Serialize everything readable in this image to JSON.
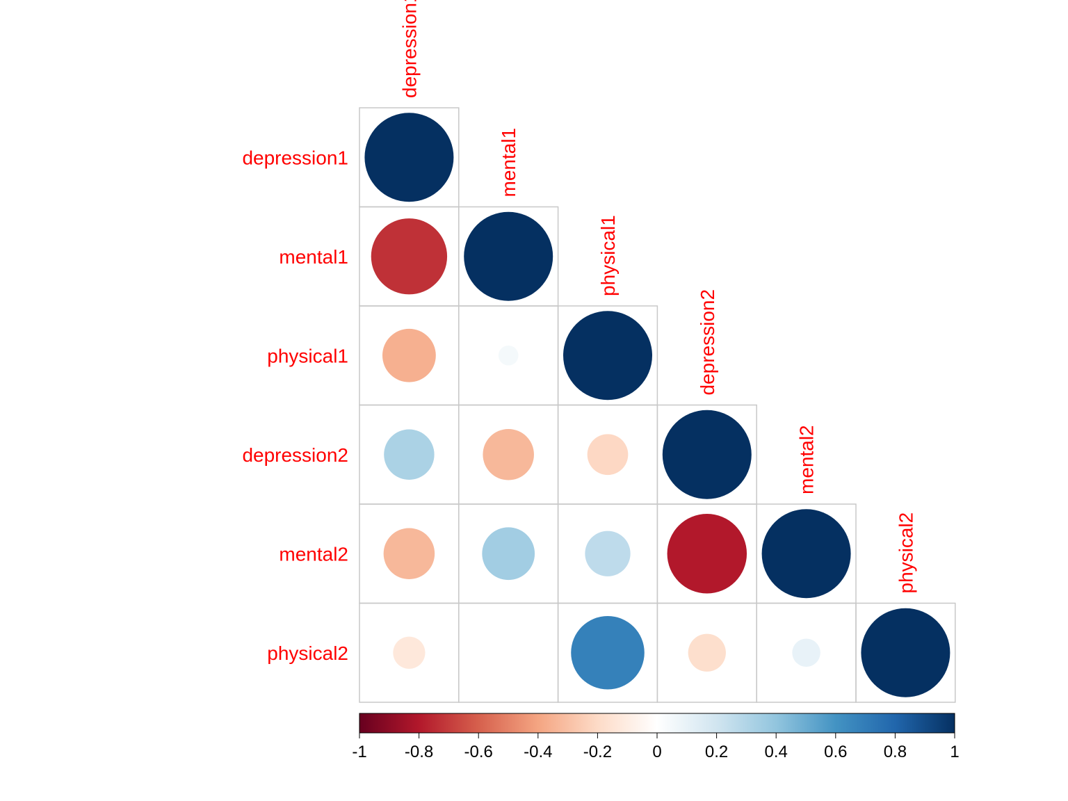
{
  "chart_data": {
    "type": "heatmap",
    "subtype": "correlation-circle-lower-triangle",
    "variables": [
      "depression1",
      "mental1",
      "physical1",
      "depression2",
      "mental2",
      "physical2"
    ],
    "matrix": [
      [
        1.0,
        -0.73,
        -0.36,
        0.32,
        -0.33,
        -0.13
      ],
      [
        -0.73,
        1.0,
        0.05,
        -0.33,
        0.35,
        0.0
      ],
      [
        -0.36,
        0.05,
        1.0,
        -0.21,
        0.26,
        0.68
      ],
      [
        0.32,
        -0.33,
        -0.21,
        1.0,
        -0.8,
        -0.18
      ],
      [
        -0.33,
        0.35,
        0.26,
        -0.8,
        1.0,
        0.1
      ],
      [
        -0.13,
        0.0,
        0.68,
        -0.18,
        0.1,
        1.0
      ]
    ],
    "colorbar": {
      "range": [
        -1,
        1
      ],
      "ticks": [
        "-1",
        "-0.8",
        "-0.6",
        "-0.4",
        "-0.2",
        "0",
        "0.2",
        "0.4",
        "0.6",
        "0.8",
        "1"
      ],
      "colors": [
        "#67001F",
        "#B2182B",
        "#D6604D",
        "#F4A582",
        "#FDDBC7",
        "#FFFFFF",
        "#D1E5F0",
        "#92C5DE",
        "#4393C3",
        "#2166AC",
        "#053061"
      ]
    },
    "label_color": "#FF0000",
    "grid_color": "#C8C8C8"
  }
}
